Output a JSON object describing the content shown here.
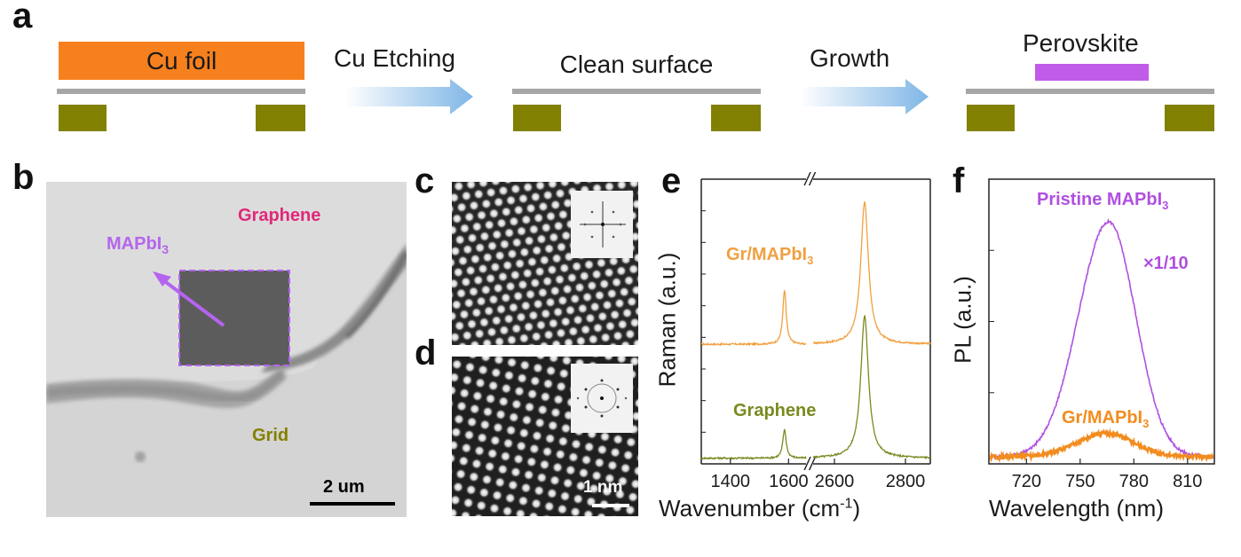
{
  "panel_labels": {
    "a": "a",
    "b": "b",
    "c": "c",
    "d": "d",
    "e": "e",
    "f": "f"
  },
  "panel_a": {
    "cu_foil": "Cu foil",
    "cu_etching": "Cu Etching",
    "clean_surface": "Clean surface",
    "growth": "Growth",
    "perovskite": "Perovskite",
    "colors": {
      "cu_foil": "#f7801e",
      "graphene_line": "#a6a6a6",
      "grid": "#828000",
      "perovskite": "#c05ce8",
      "arrow": "#9cc6ea"
    }
  },
  "panel_b": {
    "graphene": "Graphene",
    "mapbi": "MAPbI",
    "mapbi_sub": "3",
    "grid": "Grid",
    "scale": "2 um",
    "colors": {
      "graphene": "#e0287a",
      "mapbi": "#b464ee",
      "grid": "#858000"
    }
  },
  "panel_d": {
    "scale": "1 nm"
  },
  "chart_data": [
    {
      "type": "line",
      "panel": "e",
      "xlabel": "Wavenumber (cm",
      "xlabel_sup": "-1",
      "xlabel_end": ")",
      "ylabel": "Raman (a.u.)",
      "x_ticks": [
        "1400",
        "1600",
        "2600",
        "2800"
      ],
      "axis_break": "//",
      "x_ranges": [
        [
          1300,
          1660
        ],
        [
          2540,
          2870
        ]
      ],
      "series": [
        {
          "name": "Gr/MAPbI",
          "name_sub": "3",
          "color": "#f0a040",
          "baseline": 0.42,
          "peaks": [
            [
              1586,
              0.19
            ],
            [
              2685,
              0.5
            ]
          ]
        },
        {
          "name": "Graphene",
          "name_sub": "",
          "color": "#7a8a20",
          "baseline": 0.02,
          "peaks": [
            [
              1586,
              0.1
            ],
            [
              2685,
              0.5
            ]
          ]
        }
      ]
    },
    {
      "type": "line",
      "panel": "f",
      "xlabel": "Wavelength (nm)",
      "ylabel": "PL (a.u.)",
      "x_ticks": [
        "720",
        "750",
        "780",
        "810"
      ],
      "x_range": [
        699,
        825
      ],
      "annotation": "×1/10",
      "series": [
        {
          "name": "Pristine MAPbI",
          "name_sub": "3",
          "color": "#b050e0",
          "peak_x": 766,
          "peak_y": 1.0,
          "baseline": 0.0
        },
        {
          "name": "Gr/MAPbI",
          "name_sub": "3",
          "color": "#f28c1e",
          "peak_x": 765,
          "peak_y": 0.1,
          "baseline": 0.0
        }
      ]
    }
  ]
}
